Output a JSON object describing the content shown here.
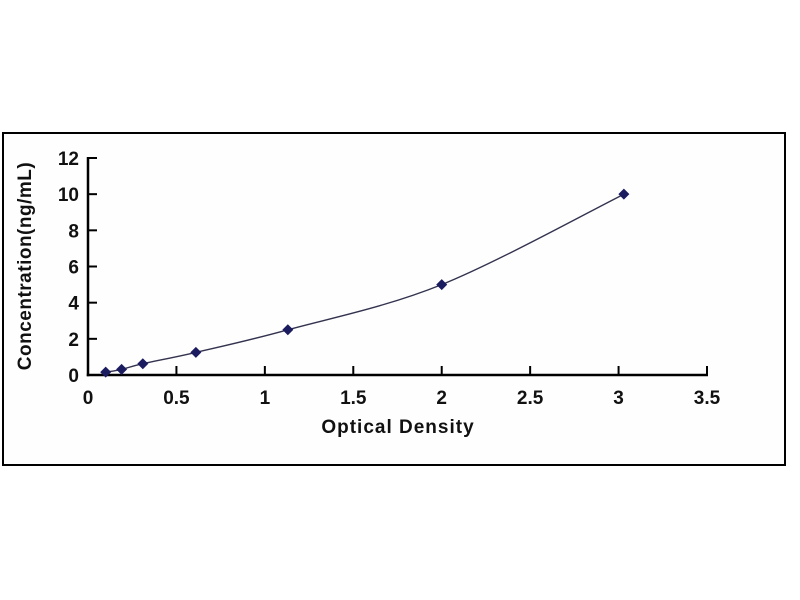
{
  "figure": {
    "background_color": "#ffffff",
    "frame_border_color": "#000000"
  },
  "chart_data": {
    "type": "line",
    "title": "",
    "xlabel": "Optical Density",
    "ylabel": "Concentration(ng/mL)",
    "x": [
      0.1,
      0.19,
      0.31,
      0.61,
      1.13,
      2.0,
      3.03
    ],
    "y": [
      0.156,
      0.312,
      0.625,
      1.25,
      2.5,
      5.0,
      10.0
    ],
    "xlim": [
      0,
      3.5
    ],
    "ylim": [
      0,
      12
    ],
    "x_ticks": [
      0,
      0.5,
      1,
      1.5,
      2,
      2.5,
      3,
      3.5
    ],
    "x_tick_labels": [
      "0",
      "0.5",
      "1",
      "1.5",
      "2",
      "2.5",
      "3",
      "3.5"
    ],
    "y_ticks": [
      0,
      2,
      4,
      6,
      8,
      10,
      12
    ],
    "y_tick_labels": [
      "0",
      "2",
      "4",
      "6",
      "8",
      "10",
      "12"
    ],
    "grid": false,
    "legend": null,
    "marker": "diamond",
    "marker_color": "#1b1b60",
    "line_color": "#33334f",
    "axis_color": "#000000",
    "tick_label_color": "#111111"
  }
}
